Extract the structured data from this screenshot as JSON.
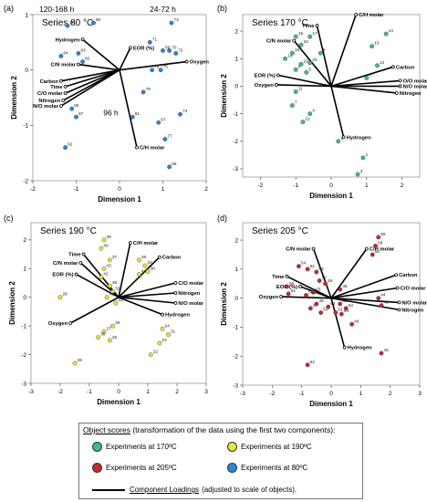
{
  "chart_data": [
    {
      "type": "biplot",
      "panel": "(a)",
      "title": "Series 80 °C",
      "xlabel": "Dimension 1",
      "ylabel": "Dimension 2",
      "xlim": [
        -2,
        2
      ],
      "ylim": [
        -2,
        1
      ],
      "xticks": [
        -2,
        -1,
        0,
        1,
        2
      ],
      "yticks": [
        -2,
        -1,
        0,
        1
      ],
      "color": "#2f86d6",
      "group_labels": [
        {
          "text": "120-168 h",
          "x": -1.45,
          "y": 1.05
        },
        {
          "text": "24-72 h",
          "x": 1.0,
          "y": 1.05
        },
        {
          "text": "96 h",
          "x": -0.2,
          "y": -0.82
        }
      ],
      "points": [
        {
          "x": -1.2,
          "y": 0.8,
          "label": "86"
        },
        {
          "x": -1.35,
          "y": 0.25,
          "label": "84"
        },
        {
          "x": -0.95,
          "y": 0.3,
          "label": "83"
        },
        {
          "x": -0.85,
          "y": 0.15,
          "label": "82"
        },
        {
          "x": -0.6,
          "y": 0.85,
          "label": "80"
        },
        {
          "x": -1.1,
          "y": -0.7,
          "label": "85"
        },
        {
          "x": -1.0,
          "y": -0.85,
          "label": "87"
        },
        {
          "x": -1.25,
          "y": -1.4,
          "label": "62"
        },
        {
          "x": 0.3,
          "y": -0.85,
          "label": "81"
        },
        {
          "x": 0.55,
          "y": -0.4,
          "label": "78"
        },
        {
          "x": 0.7,
          "y": 0.5,
          "label": "71"
        },
        {
          "x": 1.0,
          "y": 0.35,
          "label": "69"
        },
        {
          "x": 1.15,
          "y": 0.35,
          "label": "70"
        },
        {
          "x": 1.3,
          "y": 0.3,
          "label": "72"
        },
        {
          "x": 0.75,
          "y": 0.0,
          "label": "76"
        },
        {
          "x": 0.95,
          "y": 0.0,
          "label": "75"
        },
        {
          "x": 1.2,
          "y": 0.85,
          "label": "74"
        },
        {
          "x": 0.9,
          "y": -0.95,
          "label": "67"
        },
        {
          "x": 1.05,
          "y": -1.25,
          "label": "77"
        },
        {
          "x": 1.4,
          "y": -0.8,
          "label": "73"
        },
        {
          "x": 1.15,
          "y": -1.75,
          "label": "68"
        }
      ],
      "loadings": [
        {
          "name": "Oxygen",
          "x": 1.55,
          "y": 0.15
        },
        {
          "name": "Hydrogen",
          "x": -0.85,
          "y": 0.55
        },
        {
          "name": "EOR (%)",
          "x": 0.25,
          "y": 0.4
        },
        {
          "name": "C/N molar",
          "x": -0.95,
          "y": 0.1
        },
        {
          "name": "Carbon",
          "x": -1.35,
          "y": -0.2
        },
        {
          "name": "Time",
          "x": -1.25,
          "y": -0.3
        },
        {
          "name": "C/O molar",
          "x": -1.25,
          "y": -0.42
        },
        {
          "name": "Nitrogen",
          "x": -1.3,
          "y": -0.55
        },
        {
          "name": "N/O molar",
          "x": -1.35,
          "y": -0.65
        },
        {
          "name": "C/H molar",
          "x": 0.4,
          "y": -1.4
        }
      ]
    },
    {
      "type": "biplot",
      "panel": "(b)",
      "title": "Series 170 °C",
      "xlabel": "Dimension 1",
      "ylabel": "Dimension 2",
      "xlim": [
        -2.5,
        2.5
      ],
      "ylim": [
        -3.3,
        2.6
      ],
      "xticks": [
        -2,
        -1,
        0,
        1,
        2
      ],
      "yticks": [
        -3,
        -2,
        -1,
        0,
        1,
        2
      ],
      "color": "#3fbf7f",
      "points": [
        {
          "x": 1.55,
          "y": 1.9,
          "label": "14"
        },
        {
          "x": 1.15,
          "y": 1.45,
          "label": "13"
        },
        {
          "x": 1.3,
          "y": 0.75,
          "label": "12"
        },
        {
          "x": 1.0,
          "y": 0.3,
          "label": "5"
        },
        {
          "x": -1.0,
          "y": 1.8,
          "label": "15"
        },
        {
          "x": -0.85,
          "y": 1.5,
          "label": "16"
        },
        {
          "x": -0.6,
          "y": 1.8,
          "label": "17"
        },
        {
          "x": -1.3,
          "y": 1.0,
          "label": "19"
        },
        {
          "x": -1.1,
          "y": 1.2,
          "label": "18"
        },
        {
          "x": -0.85,
          "y": 0.8,
          "label": "10"
        },
        {
          "x": -1.0,
          "y": 0.6,
          "label": "8"
        },
        {
          "x": -0.7,
          "y": 0.5,
          "label": "6"
        },
        {
          "x": -0.6,
          "y": 0.85,
          "label": "20"
        },
        {
          "x": -0.3,
          "y": 1.2,
          "label": "9"
        },
        {
          "x": -1.0,
          "y": -0.2,
          "label": "11"
        },
        {
          "x": -1.1,
          "y": -0.7,
          "label": "7"
        },
        {
          "x": -0.6,
          "y": -1.0,
          "label": "4"
        },
        {
          "x": -0.8,
          "y": -1.3,
          "label": "21"
        },
        {
          "x": 0.2,
          "y": -2.0,
          "label": "1"
        },
        {
          "x": 0.9,
          "y": -2.6,
          "label": "2"
        },
        {
          "x": 0.75,
          "y": -3.2,
          "label": "3"
        }
      ],
      "loadings": [
        {
          "name": "Time",
          "x": -0.4,
          "y": 2.2
        },
        {
          "name": "C/H molar",
          "x": 0.7,
          "y": 2.6
        },
        {
          "name": "C/N molar",
          "x": -1.05,
          "y": 1.65
        },
        {
          "name": "Carbon",
          "x": 1.75,
          "y": 0.7
        },
        {
          "name": "O/O molar",
          "x": 1.95,
          "y": 0.2
        },
        {
          "name": "N/O molar",
          "x": 1.95,
          "y": 0.0
        },
        {
          "name": "Nitrogen",
          "x": 1.85,
          "y": -0.25
        },
        {
          "name": "EOR (%)",
          "x": -1.5,
          "y": 0.4
        },
        {
          "name": "Oxygen",
          "x": -1.55,
          "y": 0.05
        },
        {
          "name": "Hydrogen",
          "x": 0.35,
          "y": -1.85
        }
      ]
    },
    {
      "type": "biplot",
      "panel": "(c)",
      "title": "Series 190 °C",
      "xlabel": "Dimension 1",
      "ylabel": "Dimension 2",
      "xlim": [
        -3,
        3
      ],
      "ylim": [
        -3,
        2.6
      ],
      "xticks": [
        -3,
        -2,
        -1,
        0,
        1,
        2,
        3
      ],
      "yticks": [
        -3,
        -2,
        -1,
        0,
        1,
        2
      ],
      "color": "#e7e23a",
      "points": [
        {
          "x": -0.5,
          "y": 2.0,
          "label": "39"
        },
        {
          "x": -0.6,
          "y": 1.7,
          "label": "40"
        },
        {
          "x": -0.3,
          "y": 1.3,
          "label": "37"
        },
        {
          "x": -0.5,
          "y": 1.0,
          "label": "43"
        },
        {
          "x": -0.6,
          "y": 0.7,
          "label": "42"
        },
        {
          "x": -0.3,
          "y": 0.4,
          "label": "35"
        },
        {
          "x": -0.2,
          "y": 0.2,
          "label": "32"
        },
        {
          "x": -0.4,
          "y": 0.0,
          "label": "41"
        },
        {
          "x": -0.1,
          "y": -0.2,
          "label": "33"
        },
        {
          "x": 0.7,
          "y": 1.3,
          "label": "36"
        },
        {
          "x": 0.9,
          "y": 1.1,
          "label": "34"
        },
        {
          "x": 1.0,
          "y": 0.9,
          "label": "38"
        },
        {
          "x": 0.7,
          "y": 0.8,
          "label": "44"
        },
        {
          "x": -2.0,
          "y": 0.0,
          "label": "28"
        },
        {
          "x": -1.5,
          "y": -2.3,
          "label": "29"
        },
        {
          "x": -0.5,
          "y": -1.2,
          "label": "27"
        },
        {
          "x": -0.2,
          "y": -1.0,
          "label": "26"
        },
        {
          "x": -0.7,
          "y": -1.4,
          "label": "30"
        },
        {
          "x": -0.3,
          "y": -1.5,
          "label": "25"
        },
        {
          "x": 1.5,
          "y": -1.1,
          "label": "24"
        },
        {
          "x": 1.7,
          "y": -1.3,
          "label": "31"
        },
        {
          "x": 1.4,
          "y": -1.6,
          "label": "23"
        },
        {
          "x": 1.1,
          "y": -2.0,
          "label": "22"
        }
      ],
      "loadings": [
        {
          "name": "Time",
          "x": -1.2,
          "y": 1.5
        },
        {
          "name": "C/H molar",
          "x": 0.4,
          "y": 1.9
        },
        {
          "name": "C/N molar",
          "x": -1.3,
          "y": 1.2
        },
        {
          "name": "Carbon",
          "x": 1.4,
          "y": 1.4
        },
        {
          "name": "EOR (%)",
          "x": -1.45,
          "y": 0.8
        },
        {
          "name": "C/O molar",
          "x": 1.95,
          "y": 0.5
        },
        {
          "name": "Nitrogen",
          "x": 1.95,
          "y": 0.15
        },
        {
          "name": "N/O molar",
          "x": 1.95,
          "y": -0.2
        },
        {
          "name": "Hydrogen",
          "x": 1.5,
          "y": -0.6
        },
        {
          "name": "Oxygen",
          "x": -1.65,
          "y": -0.9
        }
      ]
    },
    {
      "type": "biplot",
      "panel": "(d)",
      "title": "Series 205 °C",
      "xlabel": "Dimension 1",
      "ylabel": "Dimension 2",
      "xlim": [
        -3,
        3
      ],
      "ylim": [
        -3,
        2.6
      ],
      "xticks": [
        -3,
        -2,
        -1,
        0,
        1,
        2,
        3
      ],
      "yticks": [
        -3,
        -2,
        -1,
        0,
        1,
        2
      ],
      "color": "#c8282a",
      "points": [
        {
          "x": 1.6,
          "y": 2.1,
          "label": "59"
        },
        {
          "x": 1.5,
          "y": 1.8,
          "label": "58"
        },
        {
          "x": 1.4,
          "y": 1.5,
          "label": "60"
        },
        {
          "x": -1.1,
          "y": 1.1,
          "label": "54"
        },
        {
          "x": -0.8,
          "y": 1.0,
          "label": "52"
        },
        {
          "x": -0.5,
          "y": 0.9,
          "label": "53"
        },
        {
          "x": -0.4,
          "y": 0.6,
          "label": "57"
        },
        {
          "x": -0.2,
          "y": 0.5,
          "label": "46"
        },
        {
          "x": -1.5,
          "y": 0.4,
          "label": "55"
        },
        {
          "x": -1.45,
          "y": 0.15,
          "label": "61"
        },
        {
          "x": -0.6,
          "y": 0.2,
          "label": "63"
        },
        {
          "x": -0.85,
          "y": 0.1,
          "label": "56"
        },
        {
          "x": 0.3,
          "y": 0.3,
          "label": "48"
        },
        {
          "x": -0.7,
          "y": -0.35,
          "label": "47"
        },
        {
          "x": -0.35,
          "y": -0.5,
          "label": "50"
        },
        {
          "x": -0.5,
          "y": -0.2,
          "label": "45"
        },
        {
          "x": -0.1,
          "y": -0.3,
          "label": "64"
        },
        {
          "x": 0.15,
          "y": -0.5,
          "label": "51"
        },
        {
          "x": 0.3,
          "y": -0.2,
          "label": "65"
        },
        {
          "x": 0.35,
          "y": -0.55,
          "label": "54"
        },
        {
          "x": 0.5,
          "y": -0.35,
          "label": "62"
        },
        {
          "x": 0.7,
          "y": -0.9,
          "label": "49"
        },
        {
          "x": 1.6,
          "y": 0.0,
          "label": "44"
        },
        {
          "x": 1.7,
          "y": -0.25,
          "label": "43"
        },
        {
          "x": 1.7,
          "y": -1.9,
          "label": "45"
        },
        {
          "x": -0.8,
          "y": -2.3,
          "label": "52"
        }
      ],
      "loadings": [
        {
          "name": "C/N molar",
          "x": -0.6,
          "y": 1.7
        },
        {
          "name": "C/H molar",
          "x": 1.2,
          "y": 1.7
        },
        {
          "name": "Time",
          "x": -1.5,
          "y": 0.75
        },
        {
          "name": "Carbon",
          "x": 2.2,
          "y": 0.8
        },
        {
          "name": "EOR (%)",
          "x": -1.05,
          "y": 0.4
        },
        {
          "name": "C/O molar",
          "x": 2.25,
          "y": 0.35
        },
        {
          "name": "Oxygen",
          "x": -1.7,
          "y": 0.05
        },
        {
          "name": "N/O molar",
          "x": 2.3,
          "y": -0.15
        },
        {
          "name": "Nitrogen",
          "x": 2.3,
          "y": -0.4
        },
        {
          "name": "Hydrogen",
          "x": 0.45,
          "y": -1.7
        }
      ]
    }
  ],
  "legend": {
    "title_main": "Object scores",
    "title_rest": " (transformation of the data using the first two components):",
    "items": [
      {
        "label": "Experiments at 170ºC",
        "color": "#3fbf7f"
      },
      {
        "label": "Experiments at 190ºC",
        "color": "#e7e23a"
      },
      {
        "label": "Experiments at 205ºC",
        "color": "#c8282a"
      },
      {
        "label": "Experiments at 80ºC",
        "color": "#2f86d6"
      }
    ],
    "loadings_title": "Component Loadings",
    "loadings_rest": " (adjusted to scale of objects)."
  }
}
